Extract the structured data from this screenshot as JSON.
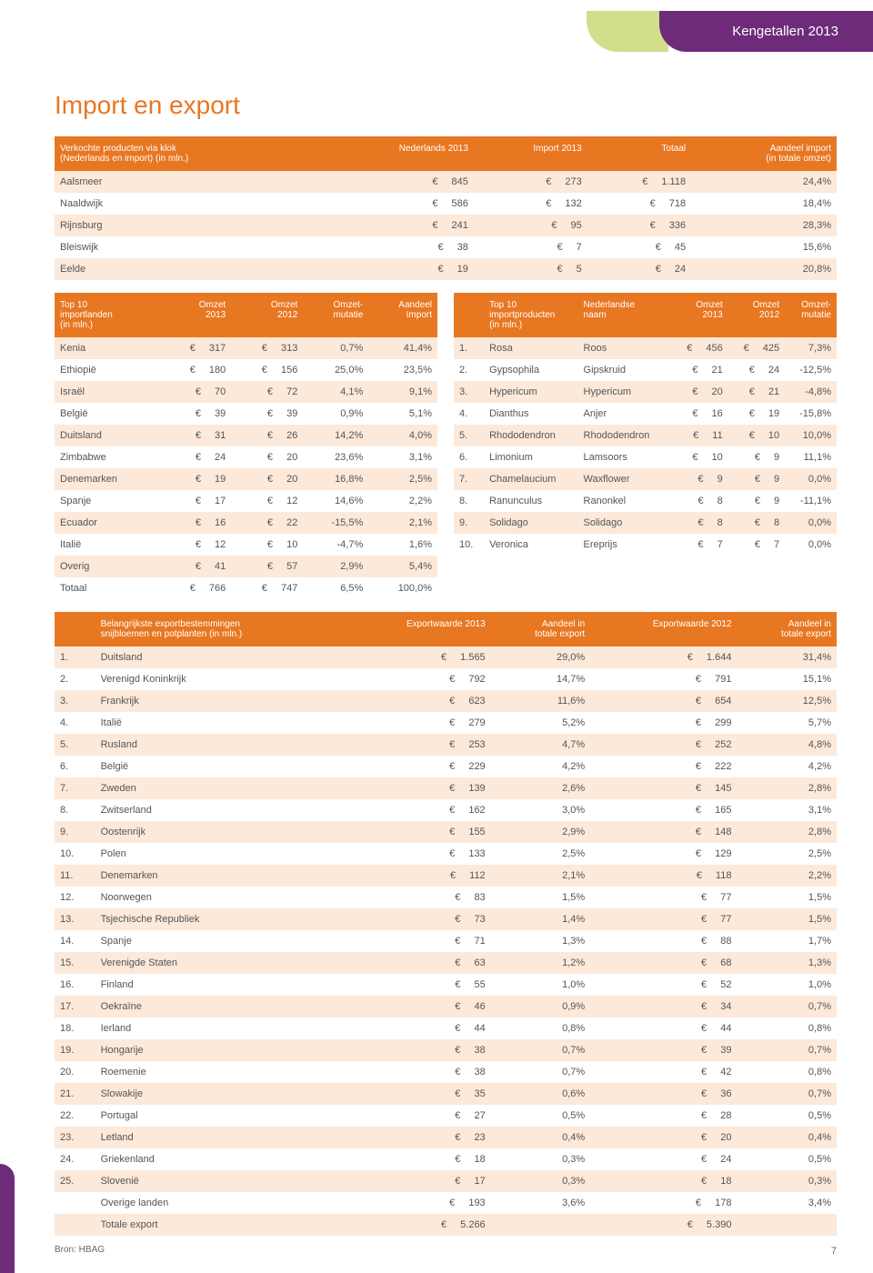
{
  "header": {
    "tab_label": "Kengetallen 2013"
  },
  "page_title": "Import en export",
  "table1": {
    "headers": [
      "Verkochte producten via klok\n(Nederlands en import) (in mln.)",
      "Nederlands 2013",
      "Import 2013",
      "Totaal",
      "Aandeel import\n(in totale omzet)"
    ],
    "rows": [
      [
        "Aalsmeer",
        "845",
        "273",
        "1.118",
        "24,4%"
      ],
      [
        "Naaldwijk",
        "586",
        "132",
        "718",
        "18,4%"
      ],
      [
        "Rijnsburg",
        "241",
        "95",
        "336",
        "28,3%"
      ],
      [
        "Bleiswijk",
        "38",
        "7",
        "45",
        "15,6%"
      ],
      [
        "Eelde",
        "19",
        "5",
        "24",
        "20,8%"
      ]
    ]
  },
  "table2": {
    "headers": [
      "Top 10\nimportlanden\n(in mln.)",
      "Omzet\n2013",
      "Omzet\n2012",
      "Omzet-\nmutatie",
      "Aandeel\nImport"
    ],
    "rows": [
      [
        "Kenia",
        "317",
        "313",
        "0,7%",
        "41,4%"
      ],
      [
        "Ethiopië",
        "180",
        "156",
        "25,0%",
        "23,5%"
      ],
      [
        "Israël",
        "70",
        "72",
        "4,1%",
        "9,1%"
      ],
      [
        "België",
        "39",
        "39",
        "0,9%",
        "5,1%"
      ],
      [
        "Duitsland",
        "31",
        "26",
        "14,2%",
        "4,0%"
      ],
      [
        "Zimbabwe",
        "24",
        "20",
        "23,6%",
        "3,1%"
      ],
      [
        "Denemarken",
        "19",
        "20",
        "16,8%",
        "2,5%"
      ],
      [
        "Spanje",
        "17",
        "12",
        "14,6%",
        "2,2%"
      ],
      [
        "Ecuador",
        "16",
        "22",
        "-15,5%",
        "2,1%"
      ],
      [
        "Italië",
        "12",
        "10",
        "-4,7%",
        "1,6%"
      ],
      [
        "Overig",
        "41",
        "57",
        "2,9%",
        "5,4%"
      ],
      [
        "Totaal",
        "766",
        "747",
        "6,5%",
        "100,0%"
      ]
    ]
  },
  "table3": {
    "headers": [
      "",
      "Top 10\nimportproducten\n(in mln.)",
      "Nederlandse\nnaam",
      "Omzet\n2013",
      "Omzet\n2012",
      "Omzet-\nmutatie"
    ],
    "rows": [
      [
        "1.",
        "Rosa",
        "Roos",
        "456",
        "425",
        "7,3%"
      ],
      [
        "2.",
        "Gypsophila",
        "Gipskruid",
        "21",
        "24",
        "-12,5%"
      ],
      [
        "3.",
        "Hypericum",
        "Hypericum",
        "20",
        "21",
        "-4,8%"
      ],
      [
        "4.",
        "Dianthus",
        "Anjer",
        "16",
        "19",
        "-15,8%"
      ],
      [
        "5.",
        "Rhododendron",
        "Rhododendron",
        "11",
        "10",
        "10,0%"
      ],
      [
        "6.",
        "Limonium",
        "Lamsoors",
        "10",
        "9",
        "11,1%"
      ],
      [
        "7.",
        "Chamelaucium",
        "Waxflower",
        "9",
        "9",
        "0,0%"
      ],
      [
        "8.",
        "Ranunculus",
        "Ranonkel",
        "8",
        "9",
        "-11,1%"
      ],
      [
        "9.",
        "Solidago",
        "Solidago",
        "8",
        "8",
        "0,0%"
      ],
      [
        "10.",
        "Veronica",
        "Ereprijs",
        "7",
        "7",
        "0,0%"
      ]
    ]
  },
  "table4": {
    "headers": [
      "",
      "Belangrijkste exportbestemmingen\nsnijbloemen en potplanten (in mln.)",
      "Exportwaarde 2013",
      "Aandeel in\ntotale export",
      "Exportwaarde 2012",
      "Aandeel in\ntotale export"
    ],
    "rows": [
      [
        "1.",
        "Duitsland",
        "1.565",
        "29,0%",
        "1.644",
        "31,4%"
      ],
      [
        "2.",
        "Verenigd Koninkrijk",
        "792",
        "14,7%",
        "791",
        "15,1%"
      ],
      [
        "3.",
        "Frankrijk",
        "623",
        "11,6%",
        "654",
        "12,5%"
      ],
      [
        "4.",
        "Italië",
        "279",
        "5,2%",
        "299",
        "5,7%"
      ],
      [
        "5.",
        "Rusland",
        "253",
        "4,7%",
        "252",
        "4,8%"
      ],
      [
        "6.",
        "België",
        "229",
        "4,2%",
        "222",
        "4,2%"
      ],
      [
        "7.",
        "Zweden",
        "139",
        "2,6%",
        "145",
        "2,8%"
      ],
      [
        "8.",
        "Zwitserland",
        "162",
        "3,0%",
        "165",
        "3,1%"
      ],
      [
        "9.",
        "Oostenrijk",
        "155",
        "2,9%",
        "148",
        "2,8%"
      ],
      [
        "10.",
        "Polen",
        "133",
        "2,5%",
        "129",
        "2,5%"
      ],
      [
        "11.",
        "Denemarken",
        "112",
        "2,1%",
        "118",
        "2,2%"
      ],
      [
        "12.",
        "Noorwegen",
        "83",
        "1,5%",
        "77",
        "1,5%"
      ],
      [
        "13.",
        "Tsjechische Republiek",
        "73",
        "1,4%",
        "77",
        "1,5%"
      ],
      [
        "14.",
        "Spanje",
        "71",
        "1,3%",
        "88",
        "1,7%"
      ],
      [
        "15.",
        "Verenigde Staten",
        "63",
        "1,2%",
        "68",
        "1,3%"
      ],
      [
        "16.",
        "Finland",
        "55",
        "1,0%",
        "52",
        "1,0%"
      ],
      [
        "17.",
        "Oekraïne",
        "46",
        "0,9%",
        "34",
        "0,7%"
      ],
      [
        "18.",
        "Ierland",
        "44",
        "0,8%",
        "44",
        "0,8%"
      ],
      [
        "19.",
        "Hongarije",
        "38",
        "0,7%",
        "39",
        "0,7%"
      ],
      [
        "20.",
        "Roemenie",
        "38",
        "0,7%",
        "42",
        "0,8%"
      ],
      [
        "21.",
        "Slowakije",
        "35",
        "0,6%",
        "36",
        "0,7%"
      ],
      [
        "22.",
        "Portugal",
        "27",
        "0,5%",
        "28",
        "0,5%"
      ],
      [
        "23.",
        "Letland",
        "23",
        "0,4%",
        "20",
        "0,4%"
      ],
      [
        "24.",
        "Griekenland",
        "18",
        "0,3%",
        "24",
        "0,5%"
      ],
      [
        "25.",
        "Slovenië",
        "17",
        "0,3%",
        "18",
        "0,3%"
      ],
      [
        "",
        "Overige landen",
        "193",
        "3,6%",
        "178",
        "3,4%"
      ],
      [
        "",
        "Totale export",
        "5.266",
        "",
        "5.390",
        ""
      ]
    ]
  },
  "source_label": "Bron: HBAG",
  "page_number": "7",
  "colors": {
    "accent_orange": "#e87722",
    "row_alt": "#fce9da",
    "header_purple": "#6e2b7a",
    "tab_green": "#d2de8a",
    "text": "#555555"
  }
}
